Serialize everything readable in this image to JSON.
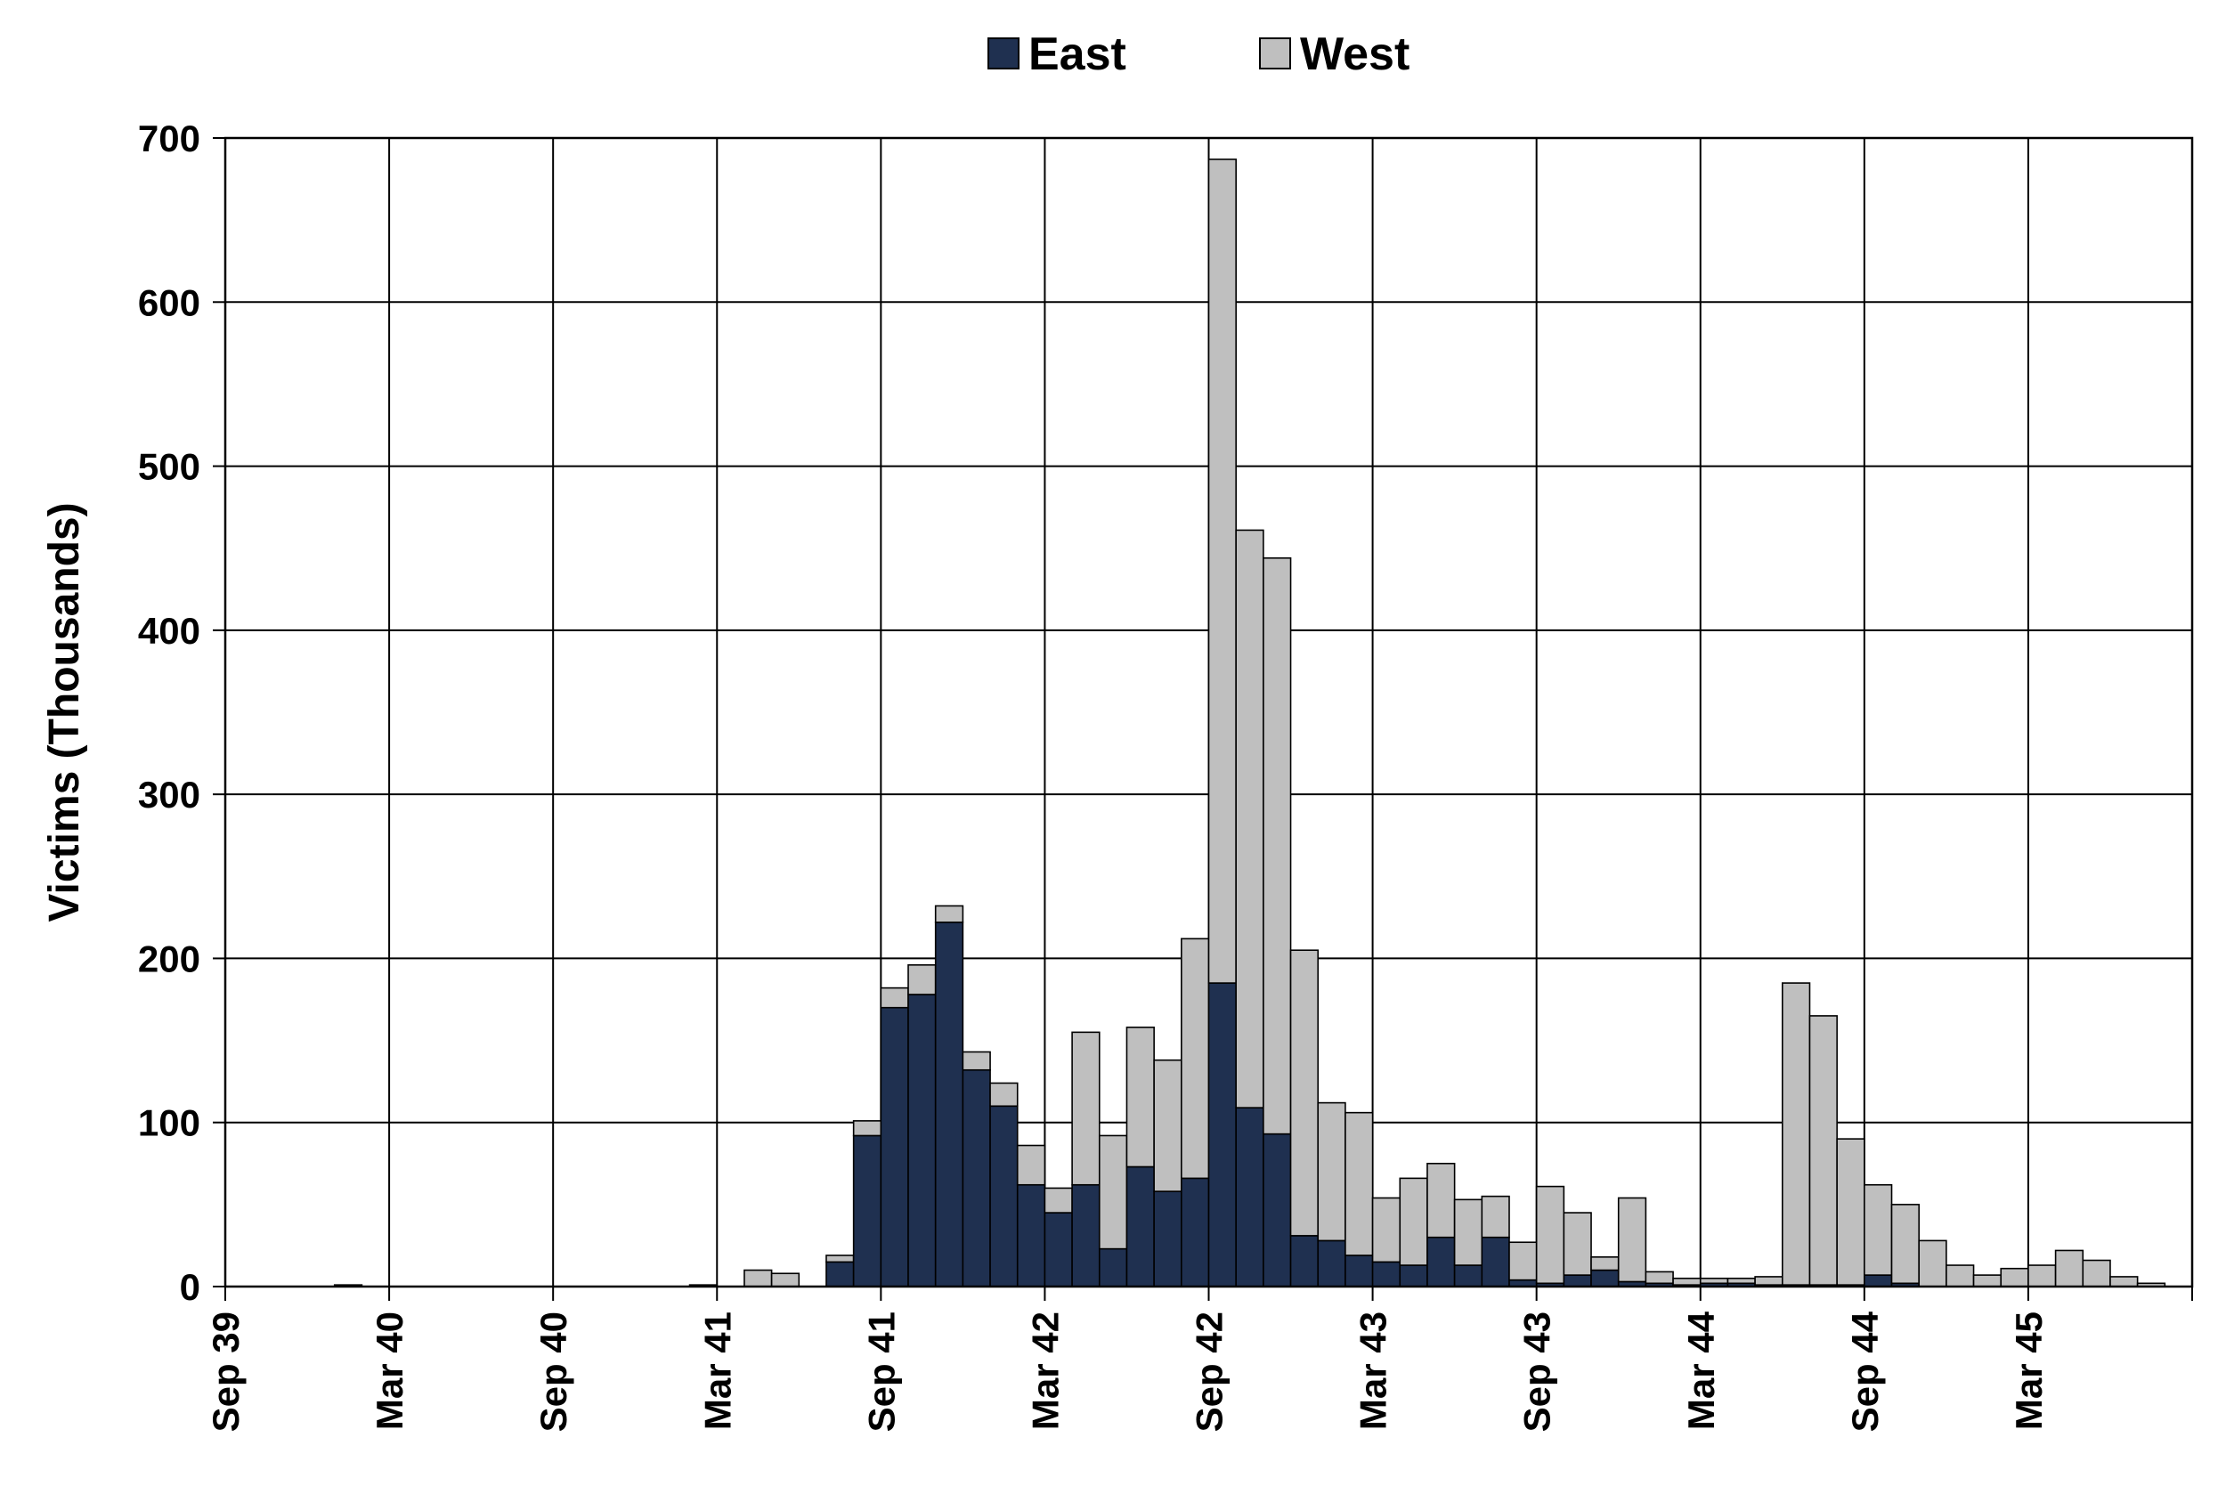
{
  "colors": {
    "east": "#1f3050",
    "west": "#bfbfbf"
  },
  "chart_data": {
    "type": "bar",
    "stacked": true,
    "ylabel": "Victims (Thousands)",
    "xlabel": "",
    "ylim": [
      0,
      700
    ],
    "yticks": [
      0,
      100,
      200,
      300,
      400,
      500,
      600,
      700
    ],
    "x_tick_labels": [
      "Sep 39",
      "Mar 40",
      "Sep 40",
      "Mar 41",
      "Sep 41",
      "Mar 42",
      "Sep 42",
      "Mar 43",
      "Sep 43",
      "Mar 44",
      "Sep 44",
      "Mar 45"
    ],
    "grid": true,
    "legend_position": "top-center",
    "series": [
      {
        "name": "East",
        "values": [
          0,
          0,
          0,
          0,
          1,
          0,
          0,
          0,
          0,
          0,
          0,
          0,
          0,
          0,
          0,
          0,
          0,
          0,
          0,
          0,
          0,
          0,
          15,
          92,
          170,
          178,
          222,
          132,
          110,
          62,
          45,
          62,
          23,
          73,
          58,
          66,
          185,
          109,
          93,
          31,
          28,
          19,
          15,
          13,
          30,
          13,
          30,
          4,
          2,
          7,
          10,
          3,
          2,
          1,
          2,
          2,
          1,
          1,
          1,
          1,
          7,
          2,
          0,
          0,
          0,
          0,
          0,
          0,
          0,
          0,
          0,
          0
        ]
      },
      {
        "name": "West",
        "values": [
          0,
          0,
          0,
          0,
          0,
          0,
          0,
          0,
          0,
          0,
          0,
          0,
          0,
          0,
          0,
          0,
          0,
          1,
          0,
          10,
          8,
          0,
          4,
          9,
          12,
          18,
          10,
          11,
          14,
          24,
          15,
          93,
          69,
          85,
          80,
          146,
          502,
          352,
          351,
          174,
          84,
          87,
          39,
          53,
          45,
          40,
          25,
          23,
          59,
          38,
          8,
          51,
          7,
          4,
          3,
          3,
          5,
          184,
          164,
          89,
          55,
          48,
          28,
          13,
          7,
          11,
          13,
          22,
          16,
          6,
          2,
          0
        ]
      }
    ]
  },
  "legend": {
    "items": [
      {
        "key": "east",
        "label": "East"
      },
      {
        "key": "west",
        "label": "West"
      }
    ]
  }
}
